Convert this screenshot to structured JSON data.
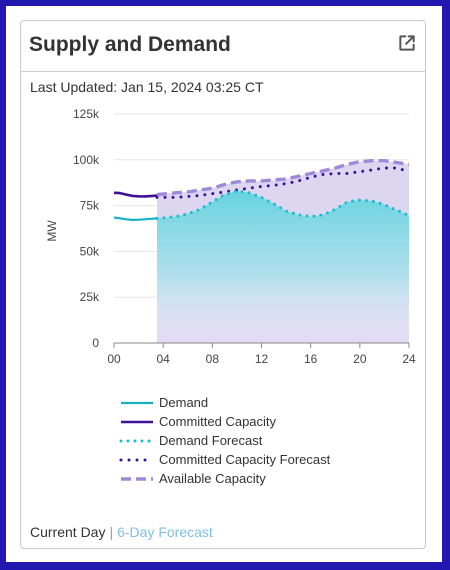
{
  "card": {
    "title": "Supply and Demand",
    "updated": "Last Updated: Jan 15, 2024 03:25 CT",
    "icon": "external-link-icon"
  },
  "footer": {
    "current": "Current Day",
    "separator": "|",
    "forecast_link": "6-Day Forecast"
  },
  "colors": {
    "demand": "#17b3c4",
    "committed": "#3d1196",
    "demand_forecast": "#1cbdcd",
    "committed_forecast": "#3d1196",
    "available": "#9b8ad8",
    "available_fill": "#d7cfef",
    "frame": "#2217b0"
  },
  "chart_data": {
    "type": "line",
    "xlabel": "",
    "ylabel": "MW",
    "xlim": [
      0,
      24
    ],
    "ylim": [
      0,
      125000
    ],
    "x_ticks": [
      "00",
      "04",
      "08",
      "12",
      "16",
      "20",
      "24"
    ],
    "y_ticks": [
      "0",
      "25k",
      "50k",
      "75k",
      "100k",
      "125k"
    ],
    "grid": true,
    "legend_position": "bottom",
    "series": [
      {
        "name": "Demand",
        "style": "solid",
        "x": [
          0,
          0.5,
          1,
          1.5,
          2,
          2.5,
          3,
          3.5
        ],
        "y": [
          68500,
          68000,
          67500,
          67200,
          67300,
          67500,
          67800,
          68000
        ]
      },
      {
        "name": "Committed Capacity",
        "style": "solid",
        "x": [
          0,
          0.5,
          1,
          1.5,
          2,
          2.5,
          3,
          3.5
        ],
        "y": [
          82000,
          81800,
          81000,
          80300,
          80100,
          80000,
          80200,
          80500
        ]
      },
      {
        "name": "Demand Forecast",
        "style": "dotted",
        "x": [
          3.5,
          5,
          6,
          7,
          8,
          9,
          10,
          11,
          12,
          13,
          14,
          15,
          16,
          17,
          18,
          19,
          20,
          21,
          22,
          23,
          24
        ],
        "y": [
          68000,
          69000,
          70500,
          73000,
          77000,
          81000,
          83000,
          82000,
          79500,
          76000,
          72000,
          70000,
          69000,
          70000,
          73000,
          77000,
          78000,
          77500,
          75500,
          72500,
          69500
        ]
      },
      {
        "name": "Committed Capacity Forecast",
        "style": "dotted",
        "x": [
          3.5,
          5,
          6,
          7,
          8,
          9,
          10,
          11,
          12,
          13,
          14,
          15,
          16,
          17,
          18,
          19,
          20,
          21,
          22,
          23,
          24
        ],
        "y": [
          79500,
          79500,
          80000,
          80500,
          81500,
          82500,
          83500,
          84500,
          85500,
          86000,
          87000,
          88500,
          90500,
          92000,
          92500,
          92500,
          93500,
          94500,
          95500,
          95500,
          93500
        ]
      },
      {
        "name": "Available Capacity",
        "style": "dashed",
        "x": [
          3.5,
          5,
          6,
          7,
          8,
          9,
          10,
          11,
          12,
          13,
          14,
          15,
          16,
          17,
          18,
          19,
          20,
          21,
          22,
          23,
          24
        ],
        "y": [
          81000,
          82000,
          82500,
          83500,
          84500,
          86500,
          88000,
          88500,
          88500,
          89000,
          89500,
          91000,
          92500,
          94000,
          95500,
          97500,
          99000,
          99500,
          99500,
          98500,
          97500
        ]
      }
    ]
  }
}
